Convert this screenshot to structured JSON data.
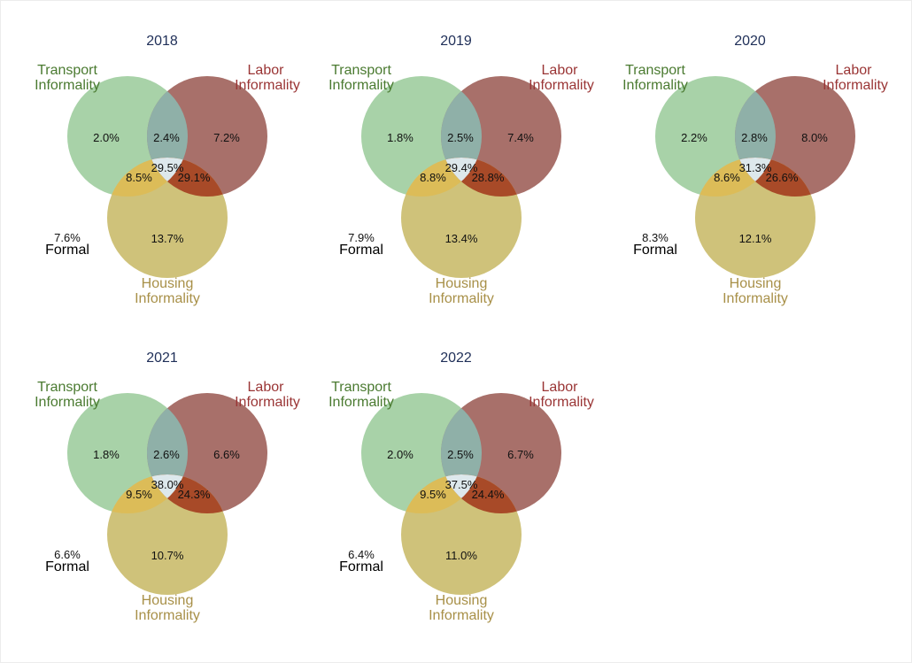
{
  "chart_data": {
    "type": "venn",
    "colors": {
      "transport": "#a8d2a8",
      "labor": "#a8706a",
      "housing": "#cfc27a",
      "transport_labor": "#8fb0a8",
      "transport_housing": "#dcbc58",
      "labor_housing": "#a84a28",
      "all_three": "#dde8ec",
      "transport_label": "#4a7a30",
      "labor_label": "#9a3535",
      "housing_label": "#a89048",
      "title": "#1f2f58",
      "value": "#111111",
      "formal_label": "#000000"
    },
    "panels": [
      {
        "title": "2018",
        "labels": {
          "transport": [
            "Transport",
            "Informality"
          ],
          "labor": [
            "Labor",
            "Informality"
          ],
          "housing": [
            "Housing",
            "Informality"
          ],
          "formal": "Formal"
        },
        "values": {
          "transport_only": "2.0%",
          "labor_only": "7.2%",
          "housing_only": "13.7%",
          "transport_labor": "2.4%",
          "transport_housing": "8.5%",
          "labor_housing": "29.1%",
          "all_three": "29.5%",
          "formal": "7.6%"
        }
      },
      {
        "title": "2019",
        "labels": {
          "transport": [
            "Transport",
            "Informality"
          ],
          "labor": [
            "Labor",
            "Informality"
          ],
          "housing": [
            "Housing",
            "Informality"
          ],
          "formal": "Formal"
        },
        "values": {
          "transport_only": "1.8%",
          "labor_only": "7.4%",
          "housing_only": "13.4%",
          "transport_labor": "2.5%",
          "transport_housing": "8.8%",
          "labor_housing": "28.8%",
          "all_three": "29.4%",
          "formal": "7.9%"
        }
      },
      {
        "title": "2020",
        "labels": {
          "transport": [
            "Transport",
            "Informality"
          ],
          "labor": [
            "Labor",
            "Informality"
          ],
          "housing": [
            "Housing",
            "Informality"
          ],
          "formal": "Formal"
        },
        "values": {
          "transport_only": "2.2%",
          "labor_only": "8.0%",
          "housing_only": "12.1%",
          "transport_labor": "2.8%",
          "transport_housing": "8.6%",
          "labor_housing": "26.6%",
          "all_three": "31.3%",
          "formal": "8.3%"
        }
      },
      {
        "title": "2021",
        "labels": {
          "transport": [
            "Transport",
            "Informality"
          ],
          "labor": [
            "Labor",
            "Informality"
          ],
          "housing": [
            "Housing",
            "Informality"
          ],
          "formal": "Formal"
        },
        "values": {
          "transport_only": "1.8%",
          "labor_only": "6.6%",
          "housing_only": "10.7%",
          "transport_labor": "2.6%",
          "transport_housing": "9.5%",
          "labor_housing": "24.3%",
          "all_three": "38.0%",
          "formal": "6.6%"
        }
      },
      {
        "title": "2022",
        "labels": {
          "transport": [
            "Transport",
            "Informality"
          ],
          "labor": [
            "Labor",
            "Informality"
          ],
          "housing": [
            "Housing",
            "Informality"
          ],
          "formal": "Formal"
        },
        "values": {
          "transport_only": "2.0%",
          "labor_only": "6.7%",
          "housing_only": "11.0%",
          "transport_labor": "2.5%",
          "transport_housing": "9.5%",
          "labor_housing": "24.4%",
          "all_three": "37.5%",
          "formal": "6.4%"
        }
      }
    ]
  }
}
